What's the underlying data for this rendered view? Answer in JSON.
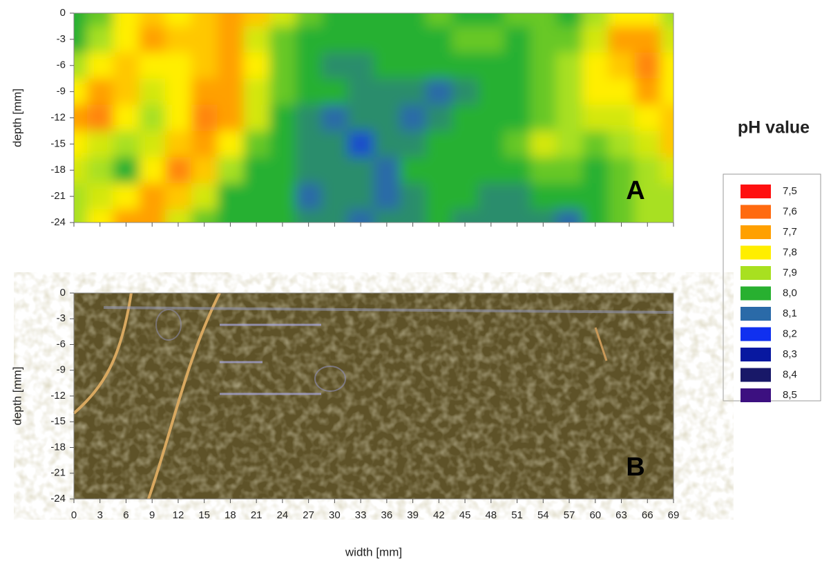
{
  "chart_data": [
    {
      "type": "heatmap",
      "label": "A",
      "ylabel": "depth [mm]",
      "x": [
        0,
        3,
        6,
        9,
        12,
        15,
        18,
        21,
        24,
        27,
        30,
        33,
        36,
        39,
        42,
        45,
        48,
        51,
        54,
        57,
        60,
        63,
        66,
        69
      ],
      "y": [
        0,
        -3,
        -6,
        -9,
        -12,
        -15,
        -18,
        -21,
        -24
      ],
      "z": [
        [
          8.0,
          7.95,
          7.8,
          7.75,
          7.8,
          7.75,
          7.7,
          7.75,
          7.85,
          7.95,
          8.0,
          8.0,
          8.0,
          8.0,
          7.95,
          8.0,
          8.0,
          7.95,
          7.95,
          8.0,
          7.9,
          7.8,
          7.8,
          7.9
        ],
        [
          8.0,
          7.9,
          7.8,
          7.7,
          7.75,
          7.75,
          7.7,
          7.85,
          7.95,
          8.0,
          8.0,
          8.0,
          8.0,
          8.0,
          8.0,
          7.95,
          7.95,
          8.0,
          7.95,
          7.95,
          7.85,
          7.7,
          7.7,
          7.85
        ],
        [
          7.9,
          7.8,
          7.75,
          7.8,
          7.8,
          7.75,
          7.7,
          7.8,
          7.95,
          8.0,
          8.05,
          8.05,
          8.0,
          8.0,
          8.0,
          8.0,
          8.0,
          8.0,
          7.95,
          7.9,
          7.8,
          7.75,
          7.65,
          7.8
        ],
        [
          7.8,
          7.7,
          7.75,
          7.85,
          7.8,
          7.7,
          7.7,
          7.85,
          7.95,
          8.0,
          8.0,
          8.05,
          8.05,
          8.05,
          8.1,
          8.05,
          8.0,
          8.0,
          7.95,
          7.9,
          7.8,
          7.8,
          7.7,
          7.8
        ],
        [
          7.7,
          7.65,
          7.8,
          7.9,
          7.8,
          7.65,
          7.7,
          7.85,
          8.0,
          8.05,
          8.1,
          8.05,
          8.05,
          8.1,
          8.05,
          8.0,
          8.0,
          8.0,
          7.95,
          7.9,
          7.85,
          7.85,
          7.8,
          7.75
        ],
        [
          7.8,
          7.85,
          7.9,
          7.85,
          7.75,
          7.7,
          7.8,
          7.95,
          8.0,
          8.05,
          8.05,
          8.15,
          8.05,
          8.05,
          8.0,
          8.0,
          8.0,
          7.95,
          7.85,
          7.9,
          7.95,
          7.9,
          7.85,
          7.75
        ],
        [
          7.85,
          7.9,
          8.0,
          7.8,
          7.65,
          7.75,
          7.9,
          8.0,
          8.0,
          8.05,
          8.05,
          8.05,
          8.1,
          8.0,
          8.0,
          8.0,
          8.0,
          8.0,
          7.95,
          7.95,
          8.0,
          7.95,
          7.9,
          7.85
        ],
        [
          7.9,
          7.85,
          7.8,
          7.7,
          7.75,
          7.85,
          8.0,
          8.0,
          8.0,
          8.1,
          8.05,
          8.05,
          8.1,
          8.05,
          8.0,
          8.0,
          8.05,
          8.05,
          8.0,
          8.0,
          8.0,
          7.95,
          7.9,
          7.9
        ],
        [
          7.9,
          7.8,
          7.7,
          7.7,
          7.85,
          7.95,
          8.0,
          8.0,
          8.0,
          8.05,
          8.05,
          8.1,
          8.05,
          8.05,
          8.0,
          8.05,
          8.05,
          8.05,
          8.05,
          8.1,
          8.0,
          7.95,
          7.9,
          7.9
        ]
      ],
      "xlim": [
        0,
        69
      ],
      "ylim": [
        -24,
        0
      ],
      "xticks": [
        0,
        3,
        6,
        9,
        12,
        15,
        18,
        21,
        24,
        27,
        30,
        33,
        36,
        39,
        42,
        45,
        48,
        51,
        54,
        57,
        60,
        63,
        66,
        69
      ],
      "yticks": [
        0,
        -3,
        -6,
        -9,
        -12,
        -15,
        -18,
        -21,
        -24
      ],
      "legend": {
        "title": "pH value",
        "levels": [
          {
            "value": 7.5,
            "label": "7,5"
          },
          {
            "value": 7.6,
            "label": "7,6"
          },
          {
            "value": 7.7,
            "label": "7,7"
          },
          {
            "value": 7.8,
            "label": "7,8"
          },
          {
            "value": 7.9,
            "label": "7,9"
          },
          {
            "value": 8.0,
            "label": "8,0"
          },
          {
            "value": 8.1,
            "label": "8,1"
          },
          {
            "value": 8.2,
            "label": "8,2"
          },
          {
            "value": 8.3,
            "label": "8,3"
          },
          {
            "value": 8.4,
            "label": "8,4"
          },
          {
            "value": 8.5,
            "label": "8,5"
          }
        ],
        "colors": [
          "#ff1010",
          "#ff6a10",
          "#ffa000",
          "#ffee00",
          "#a8e020",
          "#28b030",
          "#2a6aa8",
          "#1030f0",
          "#0818a0",
          "#181868",
          "#3c1080"
        ]
      }
    },
    {
      "type": "image",
      "label": "B",
      "ylabel": "depth [mm]",
      "xlabel": "width [mm]",
      "xlim": [
        0,
        69
      ],
      "ylim": [
        -24,
        0
      ],
      "xticks": [
        0,
        3,
        6,
        9,
        12,
        15,
        18,
        21,
        24,
        27,
        30,
        33,
        36,
        39,
        42,
        45,
        48,
        51,
        54,
        57,
        60,
        63,
        66,
        69
      ],
      "yticks": [
        0,
        -3,
        -6,
        -9,
        -12,
        -15,
        -18,
        -21,
        -24
      ]
    }
  ]
}
